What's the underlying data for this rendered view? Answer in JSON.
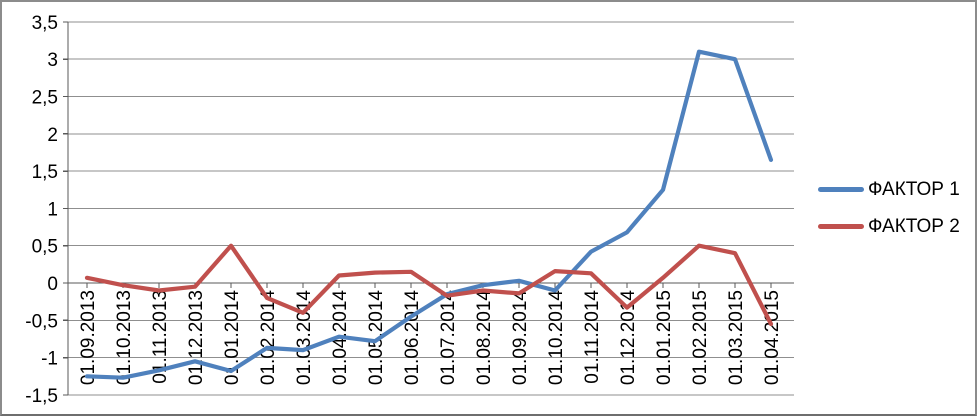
{
  "chart_data": {
    "type": "line",
    "title": "",
    "xlabel": "",
    "ylabel": "",
    "categories": [
      "01.09.2013",
      "01.10.2013",
      "01.11.2013",
      "01.12.2013",
      "01.01.2014",
      "01.02.2014",
      "01.03.2014",
      "01.04.2014",
      "01.05.2014",
      "01.06.2014",
      "01.07.2014",
      "01.08.2014",
      "01.09.2014",
      "01.10.2014",
      "01.11.2014",
      "01.12.2014",
      "01.01.2015",
      "01.02.2015",
      "01.03.2015",
      "01.04.2015"
    ],
    "series": [
      {
        "name": "ФАКТОР 1",
        "color": "#4F81BD",
        "values": [
          -1.25,
          -1.27,
          -1.17,
          -1.05,
          -1.18,
          -0.87,
          -0.9,
          -0.72,
          -0.78,
          -0.45,
          -0.15,
          -0.03,
          0.03,
          -0.1,
          0.42,
          0.68,
          1.25,
          3.1,
          3.0,
          1.65
        ]
      },
      {
        "name": "ФАКТОР 2",
        "color": "#C0504D",
        "values": [
          0.07,
          -0.03,
          -0.1,
          -0.05,
          0.5,
          -0.2,
          -0.4,
          0.1,
          0.14,
          0.15,
          -0.17,
          -0.1,
          -0.14,
          0.16,
          0.13,
          -0.33,
          0.07,
          0.5,
          0.4,
          -0.55
        ]
      }
    ],
    "ylim": [
      -1.5,
      3.5
    ],
    "y_tick_step": 0.5,
    "y_tick_labels": [
      "3,5",
      "3",
      "2,5",
      "2",
      "1,5",
      "1",
      "0,5",
      "0",
      "-0,5",
      "-1",
      "-1,5"
    ],
    "grid": "horizontal-on",
    "legend_position": "right",
    "x_labels_rotation_deg": -90,
    "colors": {
      "gridline": "#8F8F8F",
      "axis": "#595959",
      "text": "#000000",
      "background": "#FFFFFF",
      "border": "#8C8C8C"
    }
  }
}
